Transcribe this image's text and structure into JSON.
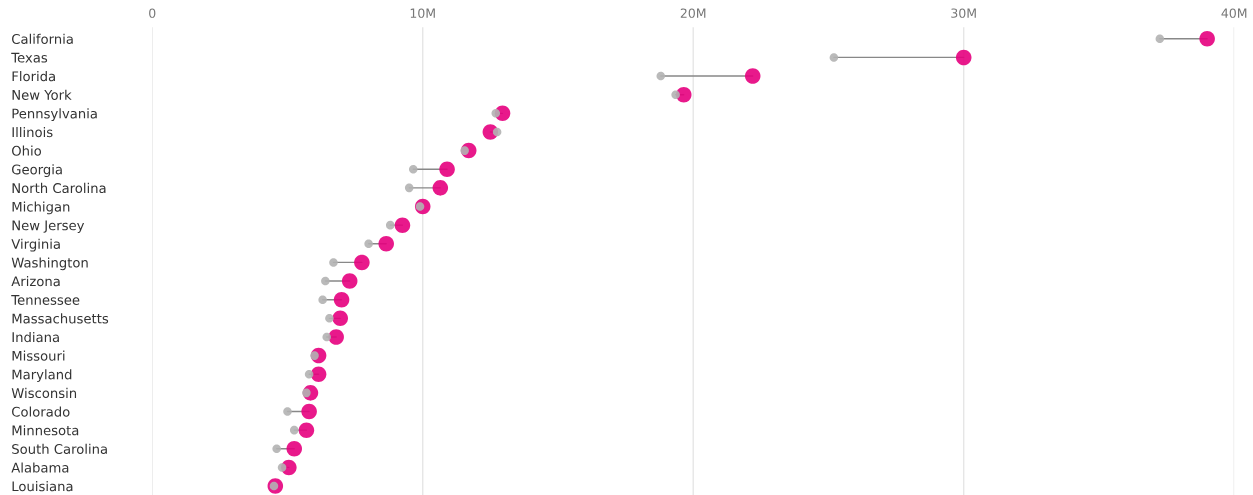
{
  "chart_data": {
    "type": "scatter",
    "categories": [
      "California",
      "Texas",
      "Florida",
      "New York",
      "Pennsylvania",
      "Illinois",
      "Ohio",
      "Georgia",
      "North Carolina",
      "Michigan",
      "New Jersey",
      "Virginia",
      "Washington",
      "Arizona",
      "Tennessee",
      "Massachusetts",
      "Indiana",
      "Missouri",
      "Maryland",
      "Wisconsin",
      "Colorado",
      "Minnesota",
      "South Carolina",
      "Alabama",
      "Louisiana"
    ],
    "series": [
      {
        "color": "#b3b3b3",
        "values": [
          37.25,
          25.2,
          18.8,
          19.35,
          12.7,
          12.75,
          11.55,
          9.65,
          9.5,
          9.9,
          8.8,
          8.0,
          6.7,
          6.4,
          6.3,
          6.55,
          6.45,
          6.0,
          5.8,
          5.7,
          5.0,
          5.25,
          4.6,
          4.8,
          4.5
        ]
      },
      {
        "color": "#e6007e",
        "values": [
          39.0,
          30.0,
          22.2,
          19.65,
          12.95,
          12.5,
          11.7,
          10.9,
          10.65,
          10.0,
          9.25,
          8.65,
          7.75,
          7.3,
          7.0,
          6.95,
          6.8,
          6.15,
          6.15,
          5.85,
          5.8,
          5.7,
          5.25,
          5.05,
          4.55
        ]
      }
    ],
    "xlim": [
      0,
      40
    ],
    "xticks": [
      0,
      {
        "value": 10,
        "label": "10M"
      },
      {
        "value": 20,
        "label": "20M"
      },
      {
        "value": 30,
        "label": "30M"
      },
      {
        "value": 40,
        "label": "40M"
      }
    ],
    "grid": "x",
    "marker": "circle",
    "orientation": "horizontal"
  }
}
